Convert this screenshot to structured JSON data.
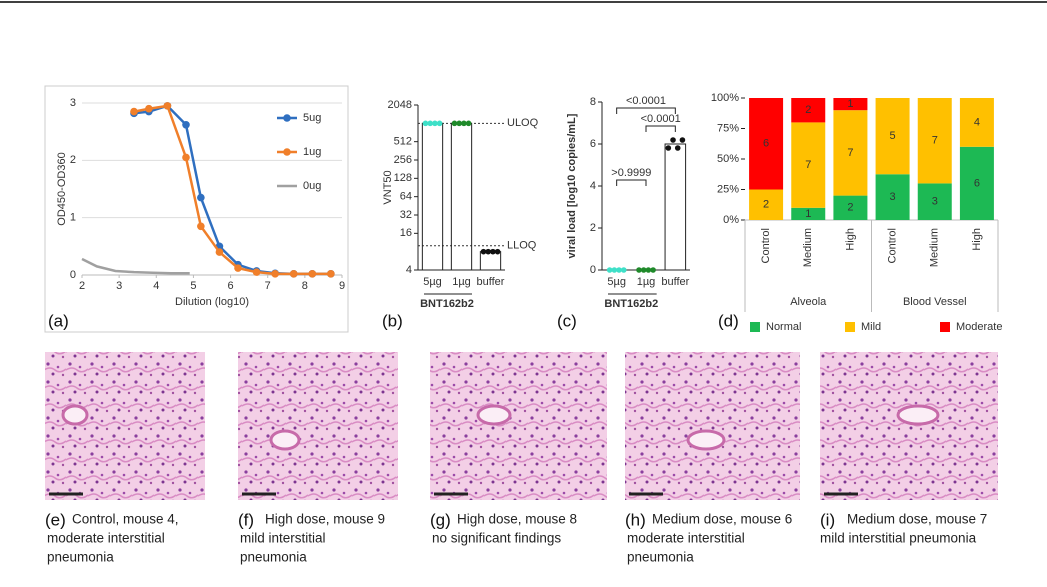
{
  "chart_data": [
    {
      "type": "line",
      "label": "(a)",
      "xlabel": "Dilution (log10)",
      "ylabel": "OD450-OD360",
      "xlim": [
        2,
        9
      ],
      "xticks": [
        2,
        3,
        4,
        5,
        6,
        7,
        8,
        9
      ],
      "ylim": [
        0,
        3
      ],
      "yticks": [
        0,
        1,
        2,
        3
      ],
      "grid": true,
      "legend": "upper right",
      "series": [
        {
          "name": "5ug",
          "color": "#2f6fc0",
          "x": [
            3.4,
            3.8,
            4.3,
            4.8,
            5.2,
            5.7,
            6.2,
            6.7,
            7.2,
            7.7,
            8.2,
            8.7
          ],
          "values": [
            2.82,
            2.85,
            2.95,
            2.62,
            1.35,
            0.5,
            0.18,
            0.07,
            0.03,
            0.02,
            0.02,
            0.02
          ]
        },
        {
          "name": "1ug",
          "color": "#f07f2a",
          "x": [
            3.4,
            3.8,
            4.3,
            4.8,
            5.2,
            5.7,
            6.2,
            6.7,
            7.2,
            7.7,
            8.2,
            8.7
          ],
          "values": [
            2.85,
            2.9,
            2.95,
            2.05,
            0.85,
            0.4,
            0.12,
            0.05,
            0.02,
            0.02,
            0.02,
            0.02
          ]
        },
        {
          "name": "0ug",
          "color": "#a0a0a0",
          "x": [
            2,
            2.4,
            2.9,
            3.4,
            3.9,
            4.4,
            4.9
          ],
          "values": [
            0.28,
            0.15,
            0.07,
            0.05,
            0.04,
            0.03,
            0.03
          ]
        }
      ]
    },
    {
      "type": "bar",
      "label": "(b)",
      "ylabel": "VNT50",
      "log_scale": true,
      "group_label": "BNT162b2",
      "categories": [
        "5µg",
        "1µg",
        "buffer"
      ],
      "values": [
        1024,
        1024,
        8
      ],
      "point_colors": [
        "#3ee0c8",
        "#1f8a2a",
        "#111111"
      ],
      "ylim": [
        4,
        2048
      ],
      "yticks": [
        4,
        16,
        32,
        64,
        128,
        256,
        512,
        2048
      ],
      "reference_lines": [
        {
          "value": 1024,
          "label": "ULOQ"
        },
        {
          "value": 10,
          "label": "LLOQ"
        }
      ]
    },
    {
      "type": "bar",
      "label": "(c)",
      "ylabel": "viral load [log10 copies/mL]",
      "group_label": "BNT162b2",
      "categories": [
        "5µg",
        "1µg",
        "buffer"
      ],
      "values": [
        0,
        0,
        6
      ],
      "point_colors": [
        "#3ee0c8",
        "#1f8a2a",
        "#111111"
      ],
      "ylim": [
        0,
        8
      ],
      "yticks": [
        0,
        2,
        4,
        6,
        8
      ],
      "annotations": [
        "<0.0001",
        "<0.0001",
        ">0.9999"
      ]
    },
    {
      "type": "stacked_bar",
      "label": "(d)",
      "legend": "bottom",
      "categories": [
        "Control",
        "Medium",
        "High",
        "Control",
        "Medium",
        "High"
      ],
      "groups": [
        "Alveola",
        "Blood Vessel"
      ],
      "ylim": [
        0,
        100
      ],
      "yticks": [
        {
          "value": 0,
          "label": "0%"
        },
        {
          "value": 25,
          "label": "25%"
        },
        {
          "value": 50,
          "label": "50%"
        },
        {
          "value": 75,
          "label": "75%"
        },
        {
          "value": 100,
          "label": "100%"
        }
      ],
      "series": [
        {
          "name": "Normal",
          "color": "#1db954",
          "values": [
            0,
            10,
            20,
            37.5,
            30,
            60
          ],
          "counts": [
            null,
            1,
            2,
            3,
            3,
            6
          ]
        },
        {
          "name": "Mild",
          "color": "#ffc000",
          "values": [
            25,
            70,
            70,
            62.5,
            70,
            40
          ],
          "counts": [
            2,
            7,
            7,
            5,
            7,
            4
          ]
        },
        {
          "name": "Moderate",
          "color": "#ff0000",
          "values": [
            75,
            20,
            10,
            0,
            0,
            0
          ],
          "counts": [
            6,
            2,
            1,
            null,
            null,
            null
          ]
        }
      ]
    }
  ],
  "figures": [
    {
      "label": "(e)",
      "caption": [
        "Control, mouse 4,",
        "moderate interstitial",
        "pneumonia"
      ]
    },
    {
      "label": "(f)",
      "caption": [
        "High dose, mouse 9",
        "mild interstitial",
        "pneumonia"
      ]
    },
    {
      "label": "(g)",
      "caption": [
        "High dose, mouse 8",
        "no significant findings"
      ]
    },
    {
      "label": "(h)",
      "caption": [
        "Medium dose, mouse 6",
        "moderate interstitial",
        "pneumonia"
      ]
    },
    {
      "label": "(i)",
      "caption": [
        "Medium dose, mouse 7",
        "mild interstitial pneumonia"
      ]
    }
  ]
}
